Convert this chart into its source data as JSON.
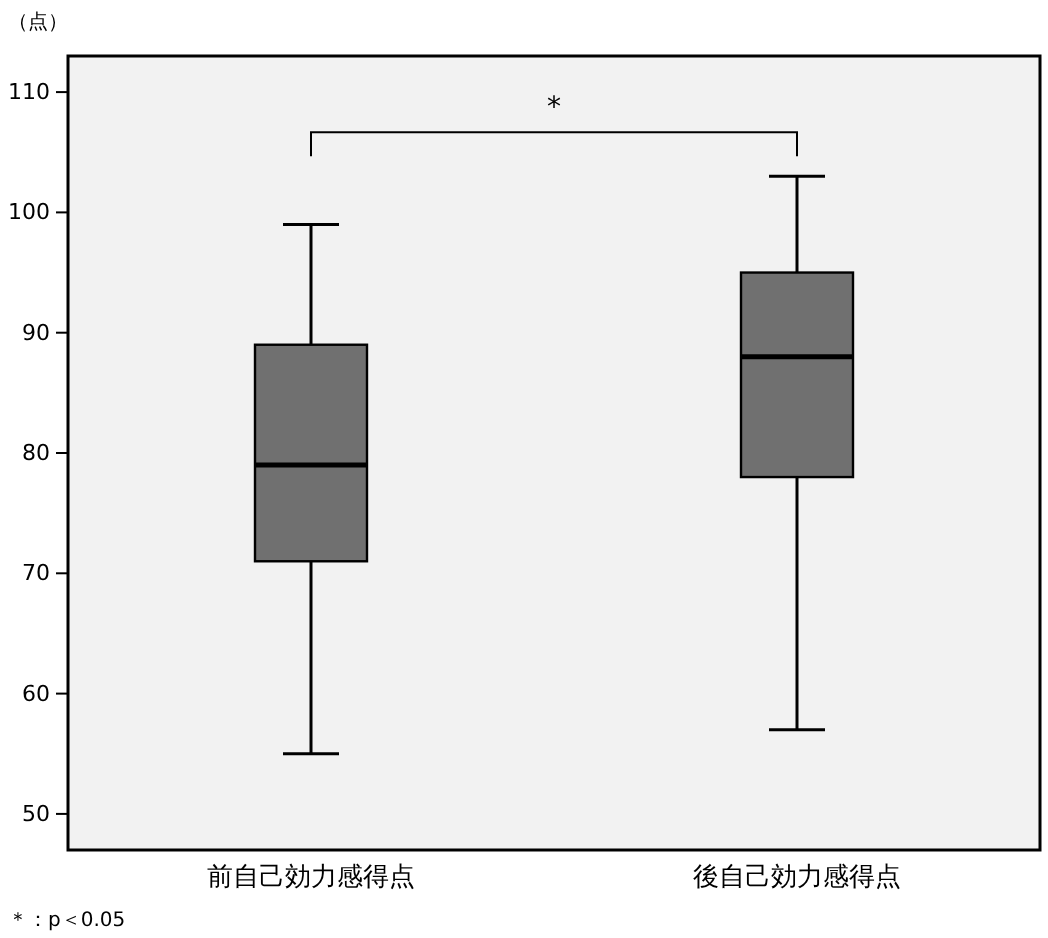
{
  "chart_data": {
    "type": "box",
    "ylabel": "（点）",
    "categories": [
      "前自己効力感得点",
      "後自己効力感得点"
    ],
    "boxes": [
      {
        "low": 55,
        "q1": 71,
        "median": 79,
        "q3": 89,
        "high": 99
      },
      {
        "low": 57,
        "q1": 78,
        "median": 88,
        "q3": 95,
        "high": 103
      }
    ],
    "color": "#707070",
    "ylim": [
      47,
      113
    ],
    "yticks": [
      50,
      60,
      70,
      80,
      90,
      100,
      110
    ],
    "annotations": [
      "*",
      "＊：p＜0.05"
    ],
    "grid": false
  }
}
